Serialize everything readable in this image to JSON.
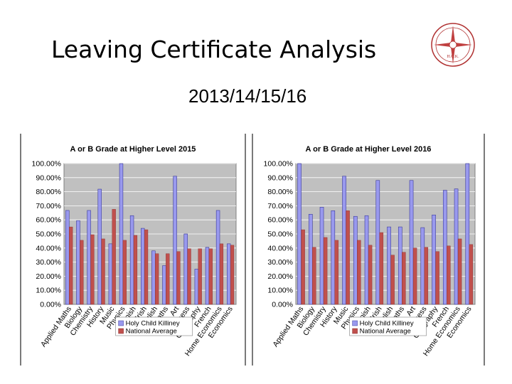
{
  "slide": {
    "title": "Leaving Certificate Analysis",
    "subtitle": "2013/14/15/16",
    "logo_text": "H.C.K."
  },
  "colors": {
    "holy_child": "#9999ee",
    "national": "#c0504d",
    "plot_bg": "#c0c0c0"
  },
  "chart_data": [
    {
      "type": "bar",
      "title": "A or B Grade at Higher Level 2015",
      "categories": [
        "Applied Maths",
        "Biology",
        "Chemistry",
        "History",
        "Music",
        "Physics",
        "Spanish",
        "Irish",
        "English",
        "Maths",
        "Art",
        "Business",
        "Geography",
        "French",
        "Home Economics",
        "Economics"
      ],
      "series": [
        {
          "name": "Holy Child Killiney",
          "values": [
            66.7,
            59.5,
            66.7,
            81.8,
            43,
            100,
            63,
            54,
            38,
            27.5,
            91,
            50,
            25,
            40.5,
            66.7,
            43
          ]
        },
        {
          "name": "National Average",
          "values": [
            55,
            45.5,
            49.5,
            46.5,
            67.5,
            45.5,
            49,
            53,
            36,
            36,
            37.5,
            39.5,
            39.5,
            39.5,
            43,
            42
          ]
        }
      ],
      "ylim": [
        0,
        100
      ],
      "yticks": [
        "0.00%",
        "10.00%",
        "20.00%",
        "30.00%",
        "40.00%",
        "50.00%",
        "60.00%",
        "70.00%",
        "80.00%",
        "90.00%",
        "100.00%"
      ],
      "grid": true,
      "legend_position": "bottom"
    },
    {
      "type": "bar",
      "title": "A or B Grade at Higher Level 2016",
      "categories": [
        "Applied Maths",
        "Biology",
        "Chemistry",
        "History",
        "Music",
        "Physics",
        "Spanish",
        "Irish",
        "English",
        "Maths",
        "Art",
        "Business",
        "Geography",
        "French",
        "Home Economics",
        "Economics"
      ],
      "series": [
        {
          "name": "Holy Child Killiney",
          "values": [
            100,
            64,
            69,
            66.5,
            91,
            62.5,
            63,
            88,
            55,
            55,
            88,
            54.5,
            63.5,
            81,
            82,
            100
          ]
        },
        {
          "name": "National Average",
          "values": [
            53,
            40.5,
            47.5,
            45.5,
            66.5,
            45.5,
            42,
            51,
            35,
            37,
            40,
            40.5,
            37.5,
            41.5,
            46.5,
            42.5
          ]
        }
      ],
      "ylim": [
        0,
        100
      ],
      "yticks": [
        "0.00%",
        "10.00%",
        "20.00%",
        "30.00%",
        "40.00%",
        "50.00%",
        "60.00%",
        "70.00%",
        "80.00%",
        "90.00%",
        "100.00%"
      ],
      "grid": true,
      "legend_position": "bottom"
    }
  ]
}
